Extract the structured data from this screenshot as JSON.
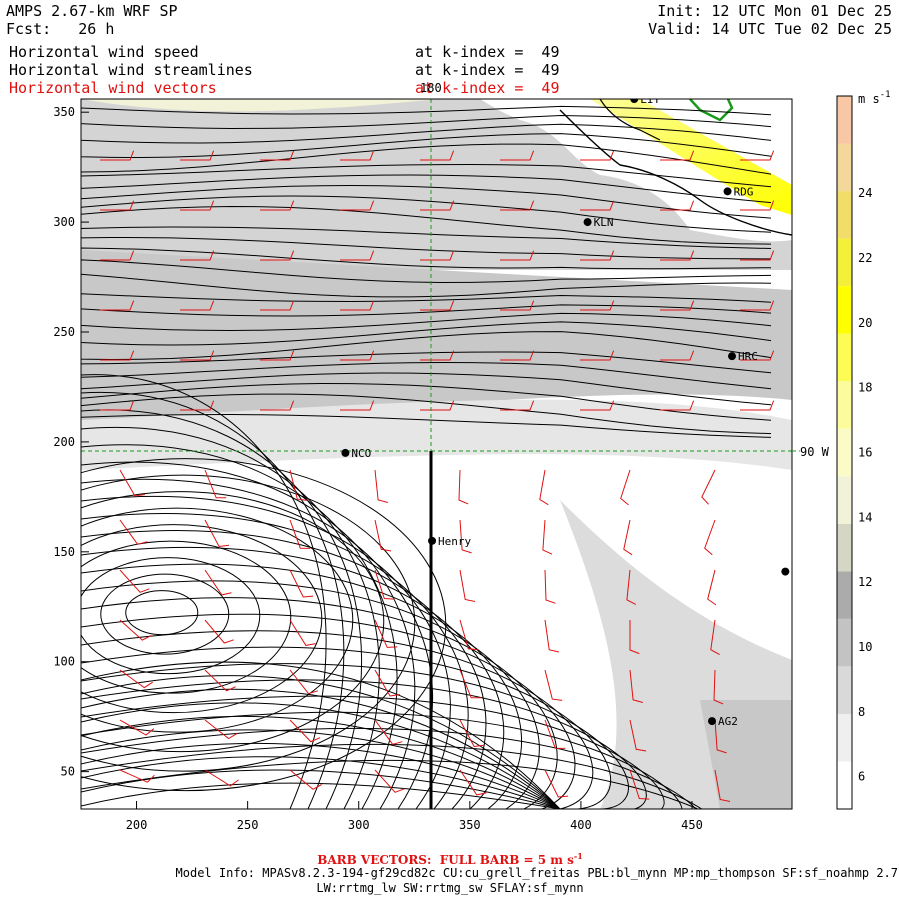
{
  "header": {
    "model_title": "AMPS 2.67-km WRF SP",
    "fcst_label": "Fcst:   26 h",
    "init": "Init: 12 UTC Mon 01 Dec 25",
    "valid": "Valid: 14 UTC Tue 02 Dec 25"
  },
  "fields": [
    {
      "name": "Horizontal wind speed",
      "level": "at k-index =  49",
      "color": "#000000"
    },
    {
      "name": "Horizontal wind streamlines",
      "level": "at k-index =  49",
      "color": "#000000"
    },
    {
      "name": "Horizontal wind vectors",
      "level": "at k-index =  49",
      "color": "#e01010"
    }
  ],
  "axes": {
    "x_ticks": [
      "200",
      "250",
      "300",
      "350",
      "400",
      "450"
    ],
    "y_ticks": [
      "350",
      "300",
      "250",
      "200",
      "150",
      "100",
      "50"
    ],
    "x_range": [
      175,
      495
    ],
    "y_range": [
      33,
      356
    ]
  },
  "grid_labels": {
    "lon_180": "180",
    "lon_90w": "90 W"
  },
  "stations": [
    {
      "label": "LIT",
      "x": 424,
      "y": 356
    },
    {
      "label": "RDG",
      "x": 466,
      "y": 314
    },
    {
      "label": "KLN",
      "x": 403,
      "y": 300
    },
    {
      "label": "HRC",
      "x": 468,
      "y": 239
    },
    {
      "label": "NCO",
      "x": 294,
      "y": 195
    },
    {
      "label": "Henry",
      "x": 333,
      "y": 155
    },
    {
      "label": "",
      "x": 492,
      "y": 141
    },
    {
      "label": "AG2",
      "x": 459,
      "y": 73
    }
  ],
  "colorbar": {
    "unit": "m s",
    "unit_sup": "-1",
    "ticks": [
      "24",
      "22",
      "20",
      "18",
      "16",
      "14",
      "12",
      "10",
      "8",
      "6"
    ],
    "colors": [
      "#ffffff",
      "#efefef",
      "#d9d9d9",
      "#c3c3c3",
      "#ababab",
      "#d6d6c4",
      "#f2f2d8",
      "#fbfbc8",
      "#fcfc9c",
      "#fcfc55",
      "#ffff00",
      "#f4f03a",
      "#f2dd6a",
      "#f4d79a",
      "#f8c7a6"
    ],
    "range": [
      5,
      27
    ]
  },
  "footer": {
    "barb_label": "BARB VECTORS:  FULL BARB = 5 m s",
    "barb_sup": "-1",
    "model_info": "Model Info: MPASv8.2.3-194-gf29cd82c CU:cu_grell_freitas PBL:bl_mynn MP:mp_thompson SF:sf_noahmp 2.7",
    "model_info2": "LW:rrtmg_lw SW:rrtmg_sw SFLAY:sf_mynn"
  }
}
